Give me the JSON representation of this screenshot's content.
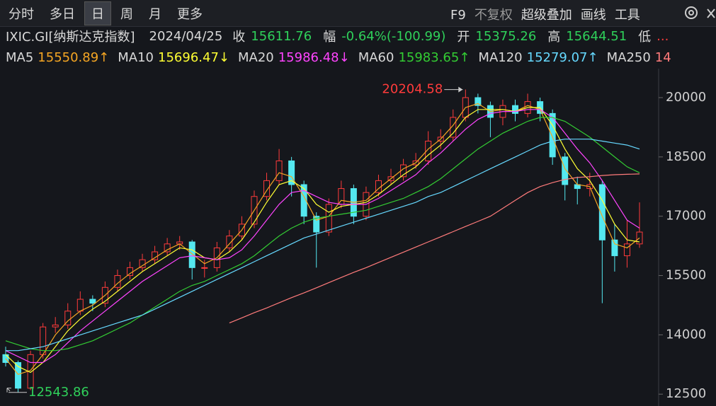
{
  "toolbar": {
    "tabs": [
      "分时",
      "多日",
      "日",
      "周",
      "月",
      "更多"
    ],
    "active_tab": 2,
    "tools": [
      "F9",
      "不复权",
      "超级叠加",
      "画线",
      "工具"
    ]
  },
  "header": {
    "symbol": "IXIC.GI[纳斯达克指数]",
    "date": "2024/04/25",
    "fields": [
      {
        "label": "收",
        "value": "15611.76"
      },
      {
        "label": "幅",
        "value": "-0.64%(-100.99)"
      },
      {
        "label": "开",
        "value": "15375.26"
      },
      {
        "label": "高",
        "value": "15644.51"
      },
      {
        "label": "低",
        "value": "..."
      }
    ]
  },
  "chart_data": {
    "type": "candlestick",
    "up_color": "#ff3b3b",
    "down_color": "#54e8f0",
    "grid": false,
    "ylim": [
      12200,
      20680
    ],
    "yticks": [
      12500,
      14000,
      15500,
      17000,
      18500,
      20000
    ],
    "open": [
      13500,
      13300,
      12650,
      13500,
      14200,
      14250,
      14600,
      14900,
      14800,
      15200,
      15500,
      15700,
      15900,
      16100,
      16300,
      16350,
      15700,
      15700,
      16200,
      16500,
      16800,
      17500,
      17900,
      18400,
      17800,
      17000,
      16600,
      17300,
      17700,
      17000,
      17600,
      17900,
      18000,
      18300,
      18400,
      18900,
      19000,
      19500,
      20000,
      19800,
      19500,
      19800,
      19600,
      19900,
      19600,
      18500,
      17800,
      17700,
      17800,
      16400,
      16000,
      16300
    ],
    "high": [
      13700,
      13350,
      13600,
      14300,
      14450,
      14800,
      15100,
      15000,
      15350,
      15650,
      15850,
      16050,
      16250,
      16450,
      16500,
      16400,
      15900,
      16350,
      16650,
      17000,
      17650,
      18100,
      18700,
      18500,
      17900,
      17100,
      17450,
      17900,
      17800,
      17750,
      18050,
      18200,
      18450,
      18600,
      19150,
      19200,
      19700,
      20204.58,
      20100,
      19900,
      19950,
      19950,
      20100,
      20000,
      19700,
      18600,
      18000,
      18100,
      17900,
      16800,
      16900,
      17350
    ],
    "low": [
      13200,
      12543.86,
      12600,
      13400,
      14050,
      14150,
      14500,
      14600,
      14700,
      15100,
      15400,
      15600,
      15800,
      16000,
      16150,
      15400,
      15450,
      15600,
      16100,
      16400,
      16700,
      17400,
      17800,
      17500,
      16800,
      15700,
      16500,
      17200,
      16800,
      16900,
      17500,
      17800,
      17900,
      18200,
      18300,
      18700,
      18900,
      19400,
      19600,
      19000,
      19300,
      19400,
      19500,
      19400,
      18300,
      17400,
      17300,
      17500,
      14800,
      15600,
      15700,
      16200
    ],
    "close": [
      13300,
      12650,
      13500,
      14200,
      14250,
      14600,
      14900,
      14800,
      15200,
      15500,
      15700,
      15900,
      16100,
      16300,
      16350,
      15700,
      15700,
      16200,
      16500,
      16800,
      17500,
      17900,
      18400,
      17800,
      17000,
      16600,
      17300,
      17700,
      17000,
      17600,
      17900,
      18000,
      18300,
      18400,
      18900,
      19000,
      19500,
      20000,
      19800,
      19500,
      19800,
      19600,
      19900,
      19600,
      18500,
      17800,
      17700,
      17800,
      16400,
      16000,
      16300,
      16600
    ],
    "high_label_index": 37,
    "low_label_index": 1,
    "legend_labels": [
      "15550.89↑",
      "15696.47↓",
      "15986.48↓",
      "15983.65↑",
      "15279.07↑",
      "14"
    ],
    "series": [
      {
        "name": "MA5",
        "color": "#f5a623",
        "values": [
          13400,
          13000,
          13100,
          13500,
          14000,
          14350,
          14600,
          14750,
          15000,
          15300,
          15550,
          15750,
          15950,
          16150,
          16300,
          16050,
          15800,
          15950,
          16300,
          16650,
          17150,
          17650,
          18100,
          18000,
          17500,
          16900,
          17000,
          17400,
          17350,
          17400,
          17700,
          17950,
          18200,
          18350,
          18700,
          18950,
          19300,
          19750,
          19850,
          19650,
          19700,
          19650,
          19800,
          19700,
          19000,
          18200,
          17800,
          17750,
          17000,
          16300,
          16200,
          16450
        ]
      },
      {
        "name": "MA10",
        "color": "#ffff33",
        "values": [
          13500,
          13200,
          13050,
          13300,
          13700,
          14100,
          14400,
          14650,
          14850,
          15100,
          15350,
          15600,
          15800,
          16000,
          16200,
          16150,
          15950,
          15900,
          16100,
          16400,
          16850,
          17350,
          17800,
          17900,
          17700,
          17300,
          17100,
          17250,
          17300,
          17350,
          17550,
          17800,
          18050,
          18250,
          18550,
          18800,
          19100,
          19500,
          19700,
          19700,
          19700,
          19650,
          19750,
          19750,
          19300,
          18700,
          18200,
          17900,
          17400,
          16800,
          16400,
          16350
        ]
      },
      {
        "name": "MA20",
        "color": "#ff44ff",
        "values": [
          13600,
          13450,
          13300,
          13300,
          13500,
          13800,
          14100,
          14350,
          14600,
          14850,
          15100,
          15350,
          15550,
          15750,
          15950,
          16000,
          15950,
          15900,
          15950,
          16150,
          16500,
          16900,
          17300,
          17600,
          17650,
          17500,
          17350,
          17300,
          17300,
          17300,
          17450,
          17650,
          17850,
          18050,
          18350,
          18600,
          18900,
          19200,
          19450,
          19600,
          19650,
          19650,
          19700,
          19700,
          19500,
          19100,
          18700,
          18350,
          17900,
          17400,
          16900,
          16700
        ]
      },
      {
        "name": "MA60",
        "color": "#33cc33",
        "values": [
          13850,
          13750,
          13650,
          13600,
          13600,
          13650,
          13750,
          13850,
          14000,
          14150,
          14300,
          14500,
          14700,
          14900,
          15100,
          15250,
          15350,
          15500,
          15650,
          15800,
          16000,
          16250,
          16500,
          16700,
          16850,
          16950,
          17000,
          17050,
          17100,
          17150,
          17250,
          17350,
          17450,
          17600,
          17750,
          17950,
          18200,
          18450,
          18700,
          18900,
          19100,
          19250,
          19400,
          19500,
          19500,
          19400,
          19200,
          19000,
          18750,
          18500,
          18250,
          18100
        ]
      },
      {
        "name": "MA120",
        "color": "#66d9ff",
        "values": [
          13600,
          13600,
          13650,
          13700,
          13800,
          13900,
          14000,
          14100,
          14200,
          14300,
          14400,
          14500,
          14650,
          14800,
          14950,
          15100,
          15250,
          15400,
          15550,
          15700,
          15850,
          16000,
          16150,
          16300,
          16450,
          16550,
          16650,
          16750,
          16850,
          16950,
          17050,
          17150,
          17250,
          17350,
          17500,
          17600,
          17750,
          17900,
          18050,
          18200,
          18350,
          18500,
          18650,
          18800,
          18900,
          18950,
          18950,
          18950,
          18900,
          18850,
          18800,
          18700
        ]
      },
      {
        "name": "MA250",
        "color": "#ff7b7b",
        "values": [
          null,
          null,
          null,
          null,
          null,
          null,
          null,
          null,
          null,
          null,
          null,
          null,
          null,
          null,
          null,
          null,
          null,
          null,
          14300,
          14430,
          14560,
          14680,
          14810,
          14940,
          15060,
          15190,
          15320,
          15450,
          15580,
          15700,
          15830,
          15960,
          16090,
          16220,
          16350,
          16480,
          16610,
          16740,
          16870,
          17000,
          17200,
          17400,
          17600,
          17750,
          17850,
          17930,
          17980,
          18000,
          18030,
          18050,
          18060,
          18070
        ]
      }
    ]
  }
}
